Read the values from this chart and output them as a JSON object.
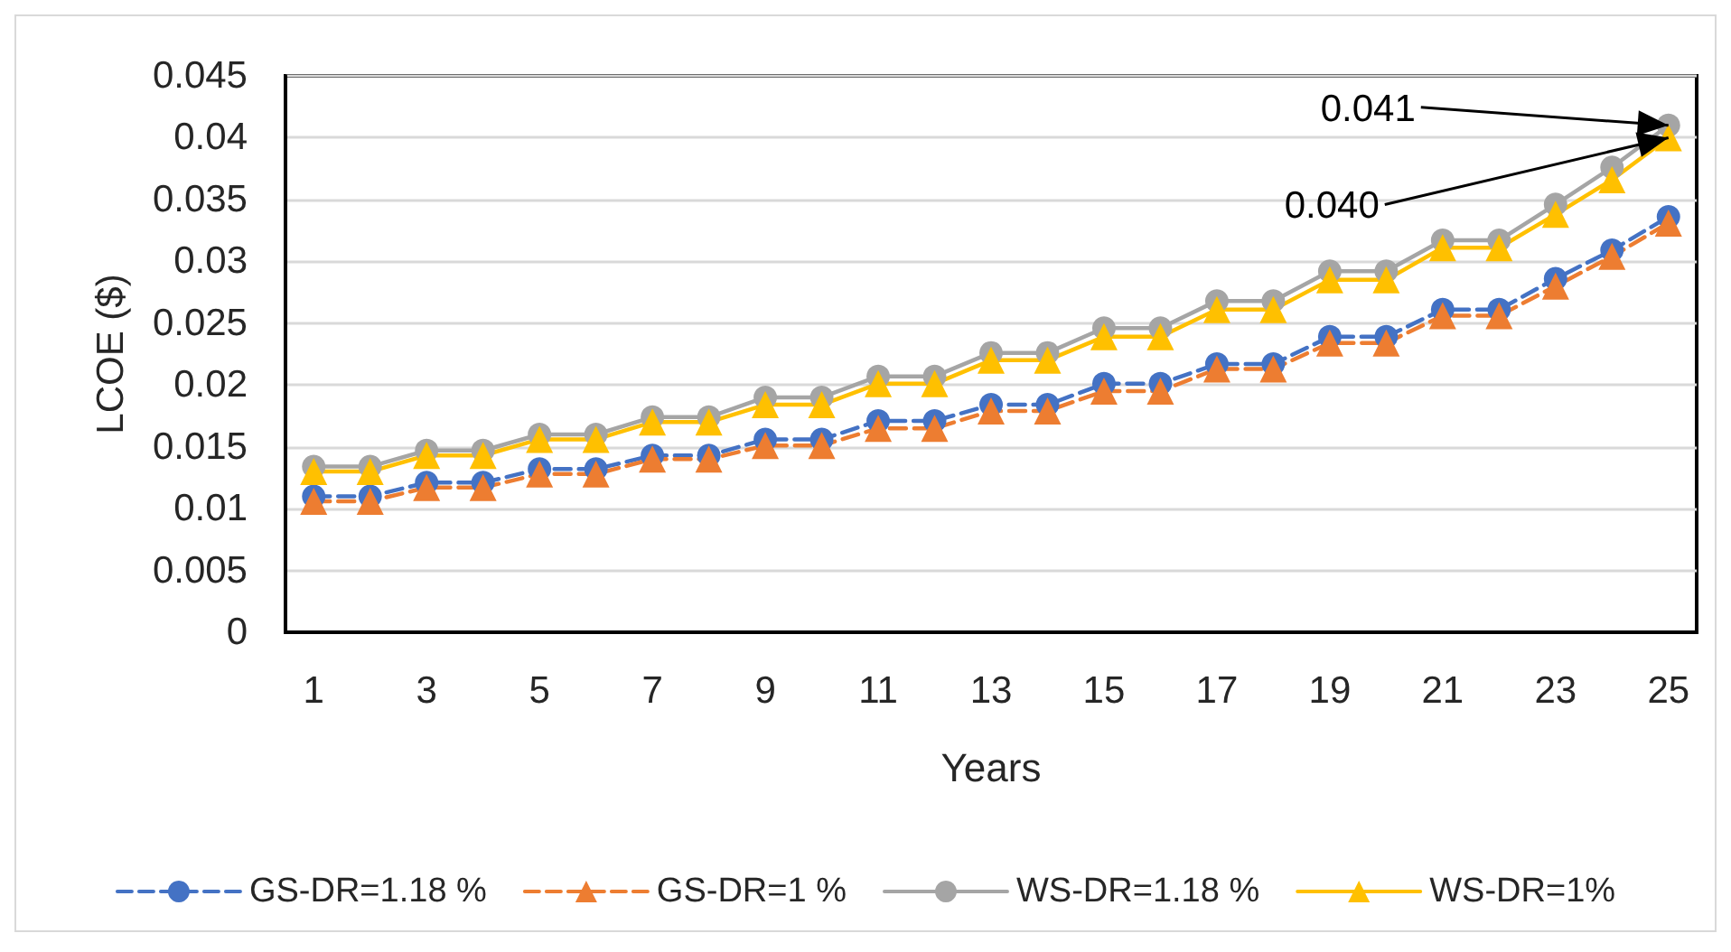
{
  "chart_data": {
    "type": "line",
    "xlabel": "Years",
    "ylabel": "LCOE ($)",
    "x": [
      1,
      2,
      3,
      4,
      5,
      6,
      7,
      8,
      9,
      10,
      11,
      12,
      13,
      14,
      15,
      16,
      17,
      18,
      19,
      20,
      21,
      22,
      23,
      24,
      25
    ],
    "xlim": [
      0.5,
      25.5
    ],
    "xticks": [
      1,
      3,
      5,
      7,
      9,
      11,
      13,
      15,
      17,
      19,
      21,
      23,
      25
    ],
    "ylim": [
      0,
      0.045
    ],
    "yticks": [
      0,
      0.005,
      0.01,
      0.015,
      0.02,
      0.025,
      0.03,
      0.035,
      0.04,
      0.045
    ],
    "grid": "y",
    "legend": "bottom",
    "series": [
      {
        "name": "GS-DR=1.18 %",
        "color": "#4472c4",
        "marker": "circle",
        "line_style": "dashed",
        "values": [
          0.011,
          0.011,
          0.0121,
          0.0121,
          0.0132,
          0.0132,
          0.0143,
          0.0143,
          0.0156,
          0.0156,
          0.0171,
          0.0171,
          0.0184,
          0.0184,
          0.0201,
          0.0201,
          0.0217,
          0.0217,
          0.0239,
          0.0239,
          0.0261,
          0.0261,
          0.0286,
          0.0309,
          0.0336
        ]
      },
      {
        "name": "GS-DR=1 %",
        "color": "#ed7d31",
        "marker": "triangle",
        "line_style": "dashed",
        "values": [
          0.0106,
          0.0106,
          0.0117,
          0.0117,
          0.0128,
          0.0128,
          0.014,
          0.014,
          0.0151,
          0.0151,
          0.0165,
          0.0165,
          0.0179,
          0.0179,
          0.0195,
          0.0195,
          0.0213,
          0.0213,
          0.0234,
          0.0234,
          0.0256,
          0.0256,
          0.028,
          0.0304,
          0.0331
        ]
      },
      {
        "name": "WS-DR=1.18 %",
        "color": "#a5a5a5",
        "marker": "circle",
        "line_style": "solid",
        "values": [
          0.0134,
          0.0134,
          0.0147,
          0.0147,
          0.016,
          0.016,
          0.0174,
          0.0174,
          0.019,
          0.019,
          0.0207,
          0.0207,
          0.0226,
          0.0226,
          0.0246,
          0.0246,
          0.0268,
          0.0268,
          0.0292,
          0.0292,
          0.0317,
          0.0317,
          0.0346,
          0.0376,
          0.041
        ]
      },
      {
        "name": "WS-DR=1%",
        "color": "#ffc000",
        "marker": "triangle",
        "line_style": "solid",
        "values": [
          0.013,
          0.013,
          0.0143,
          0.0143,
          0.0156,
          0.0156,
          0.017,
          0.017,
          0.0184,
          0.0184,
          0.0201,
          0.0201,
          0.022,
          0.022,
          0.0239,
          0.0239,
          0.0261,
          0.0261,
          0.0285,
          0.0285,
          0.0311,
          0.0311,
          0.0338,
          0.0366,
          0.04
        ]
      }
    ],
    "annotations": [
      {
        "text": "0.041",
        "x": 25,
        "y": 0.041
      },
      {
        "text": "0.040",
        "x": 25,
        "y": 0.04
      }
    ]
  }
}
